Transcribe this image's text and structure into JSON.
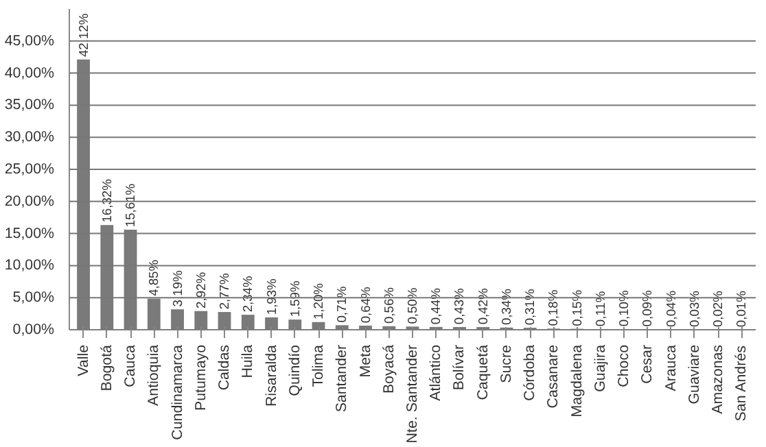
{
  "chart_data": {
    "type": "bar",
    "categories": [
      "Valle",
      "Bogotá",
      "Cauca",
      "Antioquia",
      "Cundinamarca",
      "Putumayo",
      "Caldas",
      "Huila",
      "Risaralda",
      "Quindío",
      "Tolima",
      "Santander",
      "Meta",
      "Boyacá",
      "Nte. Santander",
      "Atlántico",
      "Bolívar",
      "Caquetá",
      "Sucre",
      "Córdoba",
      "Casanare",
      "Magdalena",
      "Guajira",
      "Choco",
      "Cesar",
      "Arauca",
      "Guaviare",
      "Amazonas",
      "San Andrés"
    ],
    "values": [
      42.12,
      16.32,
      15.61,
      4.85,
      3.19,
      2.92,
      2.77,
      2.34,
      1.93,
      1.59,
      1.2,
      0.71,
      0.64,
      0.56,
      0.5,
      0.44,
      0.43,
      0.42,
      0.34,
      0.31,
      0.18,
      0.15,
      0.11,
      0.1,
      0.09,
      0.04,
      0.03,
      0.02,
      0.01
    ],
    "value_labels": [
      "42,12%",
      "16,32%",
      "15,61%",
      "4,85%",
      "3,19%",
      "2,92%",
      "2,77%",
      "2,34%",
      "1,93%",
      "1,59%",
      "1,20%",
      "0,71%",
      "0,64%",
      "0,56%",
      "0,50%",
      "0,44%",
      "0,43%",
      "0,42%",
      "0,34%",
      "0,31%",
      "0,18%",
      "0,15%",
      "0,11%",
      "0,10%",
      "0,09%",
      "0,04%",
      "0,03%",
      "0,02%",
      "0,01%"
    ],
    "color": "#7a7a7a",
    "ylim": [
      0,
      50
    ],
    "yticks": [
      {
        "value": 0,
        "label": "0,00%"
      },
      {
        "value": 5,
        "label": "5,00%"
      },
      {
        "value": 10,
        "label": "10,00%"
      },
      {
        "value": 15,
        "label": "15,00%"
      },
      {
        "value": 20,
        "label": "20,00%"
      },
      {
        "value": 25,
        "label": "25,00%"
      },
      {
        "value": 30,
        "label": "30,00%"
      },
      {
        "value": 35,
        "label": "35,00%"
      },
      {
        "value": 40,
        "label": "40,00%"
      },
      {
        "value": 45,
        "label": "45,00%"
      }
    ],
    "grid": "y"
  }
}
